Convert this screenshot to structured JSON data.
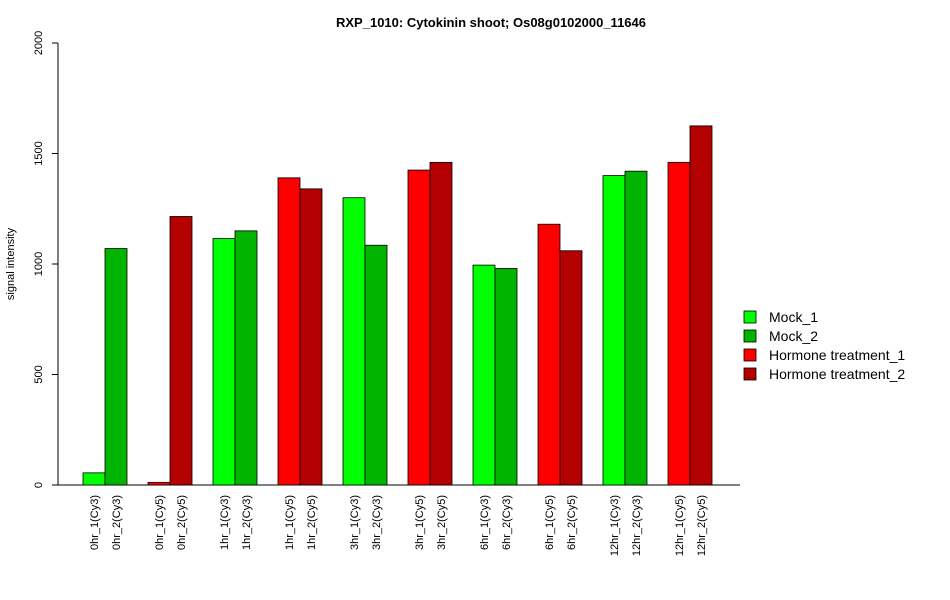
{
  "chart_data": {
    "type": "bar",
    "title": "RXP_1010: Cytokinin shoot; Os08g0102000_11646",
    "xlabel": "",
    "ylabel": "signal intensity",
    "ylim": [
      0,
      2000
    ],
    "yticks": [
      0,
      500,
      1000,
      1500,
      2000
    ],
    "grid": false,
    "legend_position": "right",
    "categories": [
      "0hr_1(Cy3)",
      "0hr_2(Cy3)",
      "0hr_1(Cy5)",
      "0hr_2(Cy5)",
      "1hr_1(Cy3)",
      "1hr_2(Cy3)",
      "1hr_1(Cy5)",
      "1hr_2(Cy5)",
      "3hr_1(Cy3)",
      "3hr_2(Cy3)",
      "3hr_1(Cy5)",
      "3hr_2(Cy5)",
      "6hr_1(Cy3)",
      "6hr_2(Cy3)",
      "6hr_1(Cy5)",
      "6hr_2(Cy5)",
      "12hr_1(Cy3)",
      "12hr_2(Cy3)",
      "12hr_1(Cy5)",
      "12hr_2(Cy5)"
    ],
    "values": [
      55,
      1070,
      12,
      1215,
      1115,
      1150,
      1390,
      1340,
      1300,
      1085,
      1425,
      1460,
      995,
      980,
      1180,
      1060,
      1400,
      1420,
      1460,
      1625
    ],
    "bar_series": [
      0,
      1,
      2,
      3,
      0,
      1,
      2,
      3,
      0,
      1,
      2,
      3,
      0,
      1,
      2,
      3,
      0,
      1,
      2,
      3
    ],
    "series": [
      {
        "name": "Mock_1",
        "color": "#00ff00"
      },
      {
        "name": "Mock_2",
        "color": "#00b400"
      },
      {
        "name": "Hormone treatment_1",
        "color": "#ff0000"
      },
      {
        "name": "Hormone treatment_2",
        "color": "#b40000"
      }
    ]
  }
}
